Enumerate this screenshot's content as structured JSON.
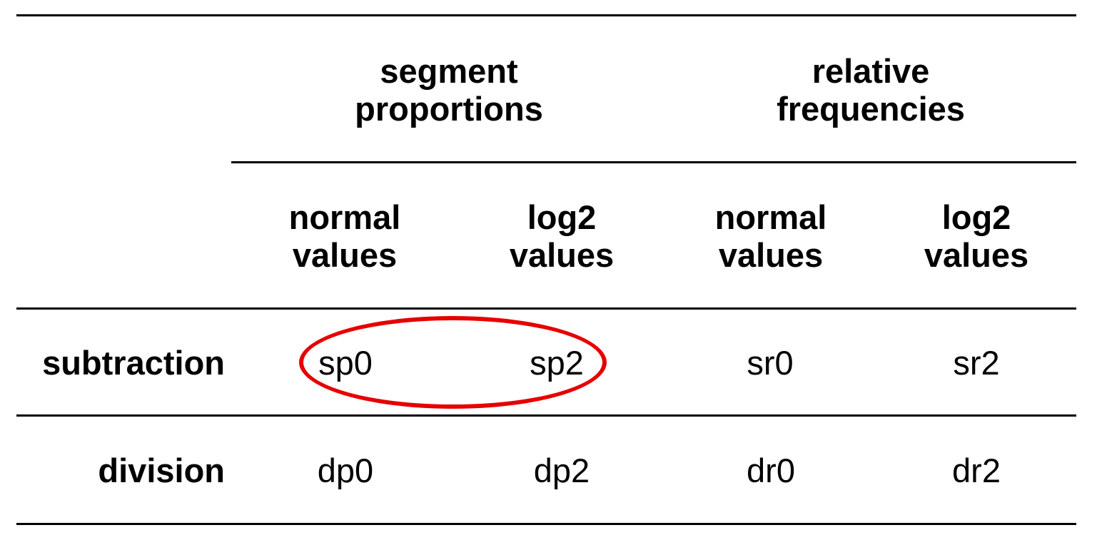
{
  "table": {
    "groups": [
      {
        "label_line1": "segment",
        "label_line2": "proportions"
      },
      {
        "label_line1": "relative",
        "label_line2": "frequencies"
      }
    ],
    "columns": [
      {
        "line1": "normal",
        "line2": "values"
      },
      {
        "line1": "log2",
        "line2": "values"
      },
      {
        "line1": "normal",
        "line2": "values"
      },
      {
        "line1": "log2",
        "line2": "values"
      }
    ],
    "rows": [
      {
        "label": "subtraction",
        "cells": [
          "sp0",
          "sp2",
          "sr0",
          "sr2"
        ]
      },
      {
        "label": "division",
        "cells": [
          "dp0",
          "dp2",
          "dr0",
          "dr2"
        ]
      }
    ]
  },
  "highlight": {
    "color": "#e60000",
    "covers_row": "subtraction",
    "covers_cells": [
      "sp0",
      "sp2"
    ]
  }
}
